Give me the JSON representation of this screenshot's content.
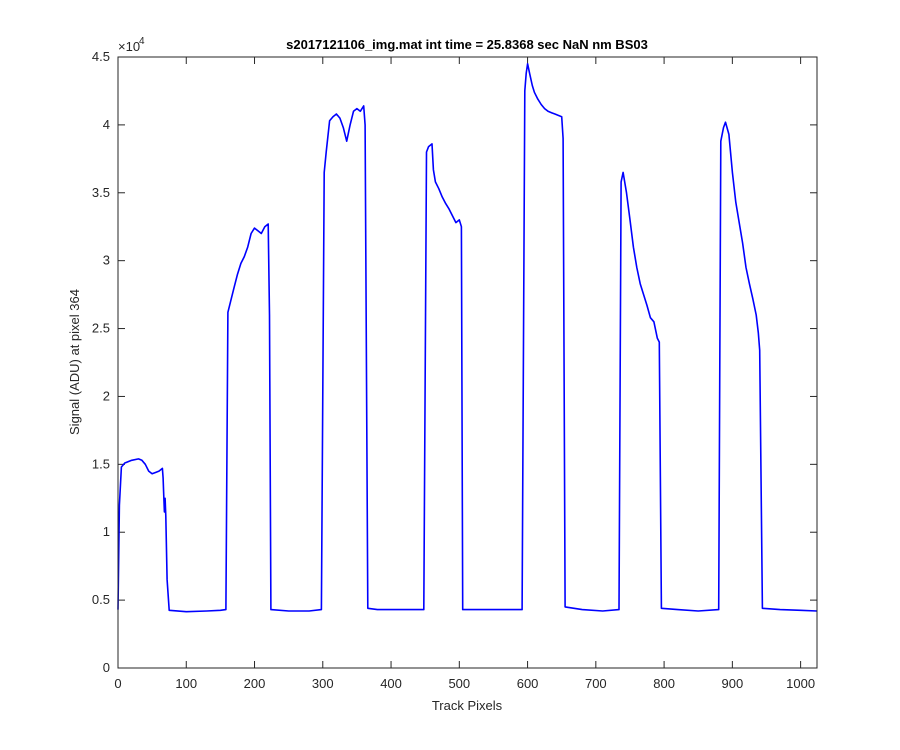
{
  "chart_data": {
    "type": "line",
    "title": "s2017121106_img.mat int time = 25.8368 sec  NaN nm BS03",
    "xlabel": "Track Pixels",
    "ylabel": "Signal (ADU) at pixel 364",
    "xlim": [
      0,
      1024
    ],
    "ylim": [
      0,
      45000
    ],
    "y_exponent_label": "×10",
    "y_exponent_power": "4",
    "x_ticks": [
      0,
      100,
      200,
      300,
      400,
      500,
      600,
      700,
      800,
      900,
      1000
    ],
    "x_tick_labels": [
      "0",
      "100",
      "200",
      "300",
      "400",
      "500",
      "600",
      "700",
      "800",
      "900",
      "1000"
    ],
    "y_ticks": [
      0,
      5000,
      10000,
      15000,
      20000,
      25000,
      30000,
      35000,
      40000,
      45000
    ],
    "y_tick_labels": [
      "0",
      "0.5",
      "1",
      "1.5",
      "2",
      "2.5",
      "3",
      "3.5",
      "4",
      "4.5"
    ],
    "grid": false,
    "series_color": "#0000ff",
    "series": [
      {
        "points": [
          [
            0,
            4300
          ],
          [
            2,
            12000
          ],
          [
            5,
            14800
          ],
          [
            10,
            15100
          ],
          [
            20,
            15300
          ],
          [
            30,
            15400
          ],
          [
            35,
            15300
          ],
          [
            40,
            15000
          ],
          [
            45,
            14500
          ],
          [
            50,
            14300
          ],
          [
            55,
            14400
          ],
          [
            60,
            14500
          ],
          [
            65,
            14700
          ],
          [
            66,
            14000
          ],
          [
            67,
            12800
          ],
          [
            68,
            11500
          ],
          [
            69,
            12500
          ],
          [
            70,
            11200
          ],
          [
            72,
            6500
          ],
          [
            75,
            4250
          ],
          [
            100,
            4150
          ],
          [
            130,
            4200
          ],
          [
            150,
            4250
          ],
          [
            158,
            4300
          ],
          [
            161,
            26200
          ],
          [
            165,
            27000
          ],
          [
            170,
            28000
          ],
          [
            175,
            29000
          ],
          [
            180,
            29800
          ],
          [
            185,
            30300
          ],
          [
            190,
            31000
          ],
          [
            195,
            32000
          ],
          [
            200,
            32400
          ],
          [
            205,
            32200
          ],
          [
            210,
            32000
          ],
          [
            215,
            32500
          ],
          [
            220,
            32700
          ],
          [
            222,
            26000
          ],
          [
            224,
            4300
          ],
          [
            250,
            4200
          ],
          [
            280,
            4200
          ],
          [
            298,
            4300
          ],
          [
            302,
            36500
          ],
          [
            305,
            38000
          ],
          [
            310,
            40300
          ],
          [
            315,
            40600
          ],
          [
            320,
            40800
          ],
          [
            325,
            40500
          ],
          [
            330,
            39800
          ],
          [
            335,
            38800
          ],
          [
            340,
            40000
          ],
          [
            345,
            41000
          ],
          [
            350,
            41200
          ],
          [
            355,
            41000
          ],
          [
            360,
            41400
          ],
          [
            362,
            40000
          ],
          [
            366,
            4400
          ],
          [
            380,
            4300
          ],
          [
            420,
            4300
          ],
          [
            448,
            4300
          ],
          [
            452,
            38000
          ],
          [
            455,
            38400
          ],
          [
            460,
            38600
          ],
          [
            462,
            36700
          ],
          [
            465,
            35800
          ],
          [
            470,
            35300
          ],
          [
            475,
            34700
          ],
          [
            480,
            34200
          ],
          [
            485,
            33800
          ],
          [
            490,
            33300
          ],
          [
            495,
            32800
          ],
          [
            500,
            33000
          ],
          [
            503,
            32500
          ],
          [
            505,
            4300
          ],
          [
            530,
            4300
          ],
          [
            570,
            4300
          ],
          [
            592,
            4300
          ],
          [
            596,
            42500
          ],
          [
            598,
            43800
          ],
          [
            600,
            44500
          ],
          [
            603,
            43800
          ],
          [
            607,
            42900
          ],
          [
            610,
            42400
          ],
          [
            615,
            41900
          ],
          [
            620,
            41500
          ],
          [
            625,
            41200
          ],
          [
            630,
            41000
          ],
          [
            635,
            40900
          ],
          [
            640,
            40800
          ],
          [
            645,
            40700
          ],
          [
            650,
            40600
          ],
          [
            652,
            39000
          ],
          [
            655,
            4500
          ],
          [
            680,
            4300
          ],
          [
            710,
            4200
          ],
          [
            734,
            4300
          ],
          [
            737,
            35800
          ],
          [
            740,
            36500
          ],
          [
            745,
            35000
          ],
          [
            750,
            33000
          ],
          [
            755,
            31000
          ],
          [
            760,
            29500
          ],
          [
            765,
            28300
          ],
          [
            770,
            27500
          ],
          [
            775,
            26700
          ],
          [
            780,
            25800
          ],
          [
            785,
            25500
          ],
          [
            790,
            24300
          ],
          [
            793,
            24000
          ],
          [
            796,
            4400
          ],
          [
            820,
            4300
          ],
          [
            850,
            4200
          ],
          [
            880,
            4300
          ],
          [
            883,
            38800
          ],
          [
            887,
            39800
          ],
          [
            890,
            40200
          ],
          [
            895,
            39300
          ],
          [
            900,
            36500
          ],
          [
            905,
            34300
          ],
          [
            910,
            32800
          ],
          [
            915,
            31300
          ],
          [
            920,
            29500
          ],
          [
            925,
            28300
          ],
          [
            930,
            27200
          ],
          [
            935,
            26000
          ],
          [
            938,
            24700
          ],
          [
            940,
            23400
          ],
          [
            944,
            4400
          ],
          [
            970,
            4300
          ],
          [
            1000,
            4250
          ],
          [
            1024,
            4200
          ]
        ]
      }
    ]
  }
}
